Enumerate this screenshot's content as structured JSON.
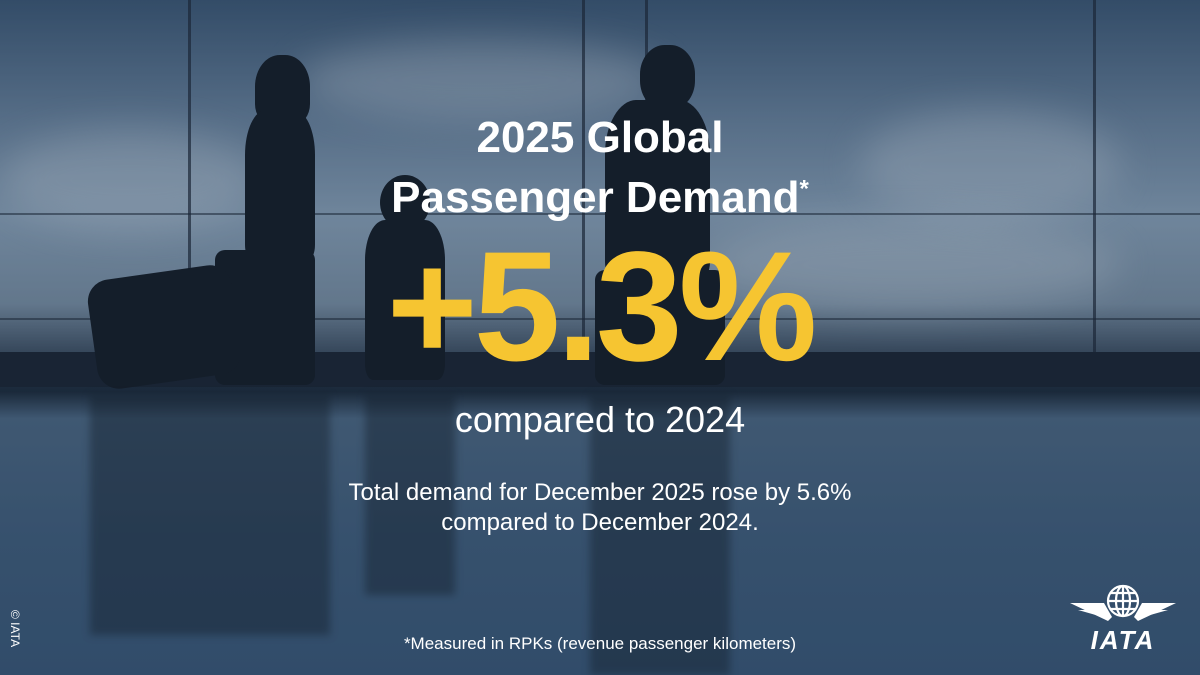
{
  "headline": {
    "line1": "2025 Global",
    "line2": "Passenger Demand",
    "asterisk": "*"
  },
  "stat": {
    "value": "+5.3%",
    "comparison": "compared to 2024"
  },
  "detail": {
    "line1": "Total demand for December 2025 rose by 5.6%",
    "line2": "compared to December 2024."
  },
  "footnote": "*Measured in RPKs (revenue passenger kilometers)",
  "copyright": "© IATA",
  "logo": {
    "text": "IATA",
    "icon": "iata-globe-wings-logo"
  },
  "colors": {
    "accent": "#f6c531",
    "text": "#ffffff"
  }
}
